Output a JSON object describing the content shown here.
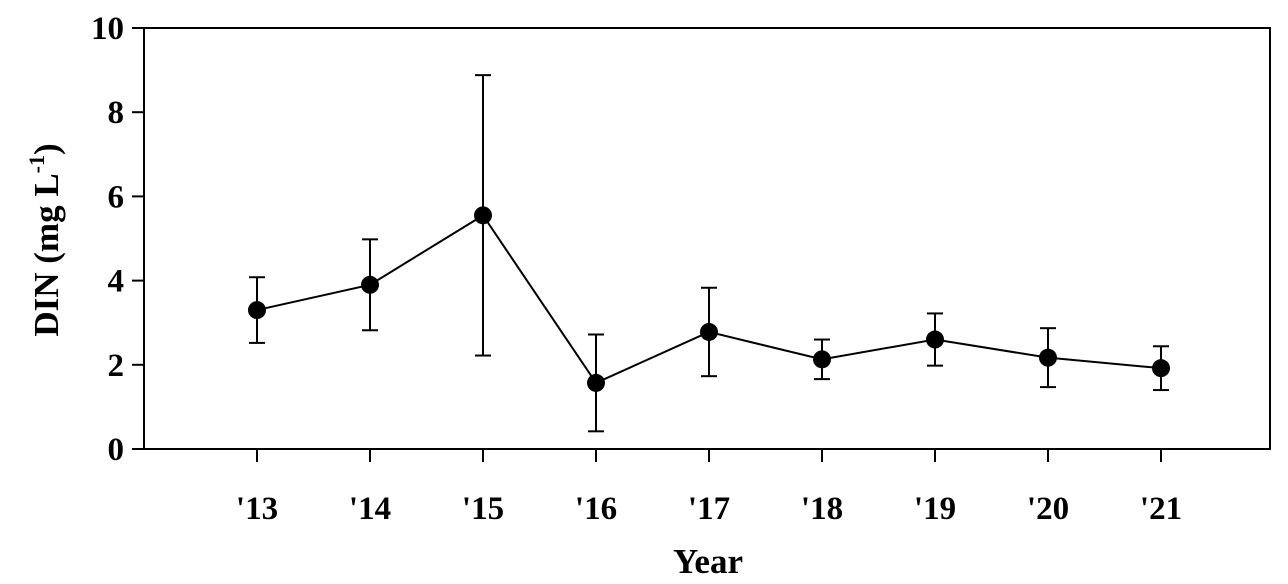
{
  "chart_data": {
    "type": "line",
    "x": [
      "'13",
      "'14",
      "'15",
      "'16",
      "'17",
      "'18",
      "'19",
      "'20",
      "'21"
    ],
    "series": [
      {
        "values": [
          3.3,
          3.9,
          5.55,
          1.57,
          2.78,
          2.13,
          2.6,
          2.17,
          1.92
        ],
        "error": [
          0.78,
          1.08,
          3.33,
          1.15,
          1.05,
          0.47,
          0.62,
          0.7,
          0.52
        ],
        "color": "#000000",
        "marker": "filled-circle"
      }
    ],
    "ylim": [
      0,
      10
    ],
    "yticks": [
      "0",
      "2",
      "4",
      "6",
      "8",
      "10"
    ],
    "xlabel": "Year",
    "ylabel_main": "DIN (mg L",
    "ylabel_sup": "-1",
    "ylabel_close": ")",
    "grid": false,
    "legend": "none"
  }
}
